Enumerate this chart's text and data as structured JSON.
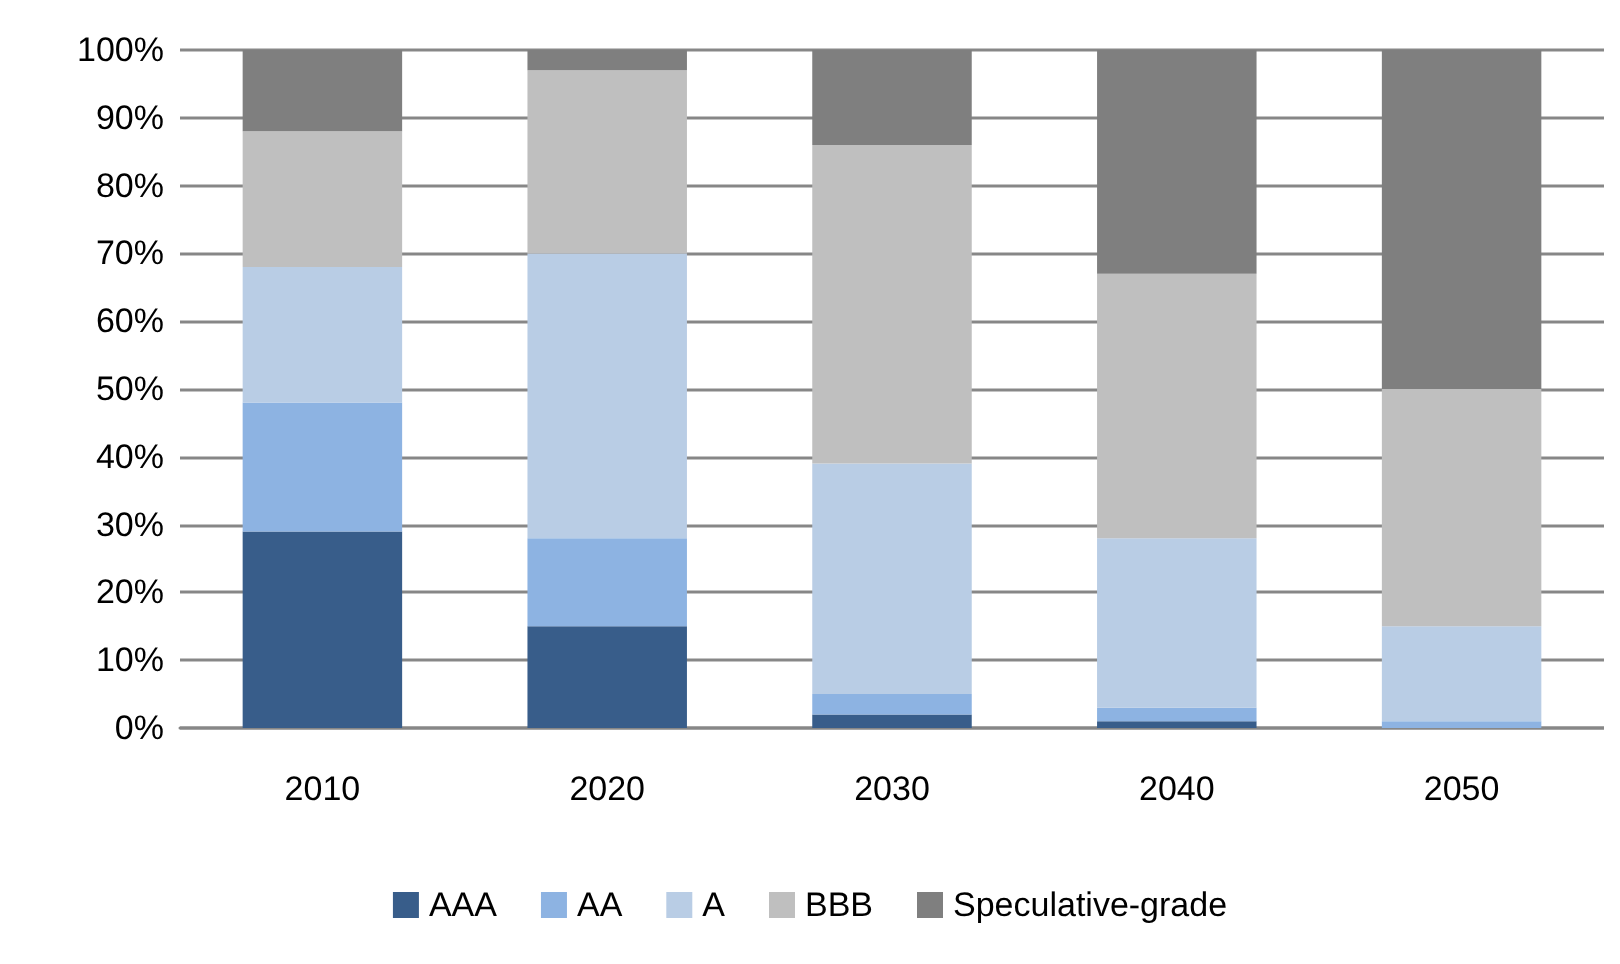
{
  "chart_data": {
    "type": "bar",
    "stacked": true,
    "categories": [
      "2010",
      "2020",
      "2030",
      "2040",
      "2050"
    ],
    "series": [
      {
        "name": "AAA",
        "color": "#385d8a",
        "values": [
          29,
          15,
          2,
          1,
          0
        ]
      },
      {
        "name": "AA",
        "color": "#8db3e2",
        "values": [
          19,
          13,
          3,
          2,
          1
        ]
      },
      {
        "name": "A",
        "color": "#b9cde5",
        "values": [
          20,
          42,
          34,
          25,
          14
        ]
      },
      {
        "name": "BBB",
        "color": "#bfbfbf",
        "values": [
          20,
          27,
          47,
          39,
          35
        ]
      },
      {
        "name": "Speculative-grade",
        "color": "#7f7f7f",
        "values": [
          12,
          3,
          14,
          33,
          50
        ]
      }
    ],
    "ylim": [
      0,
      100
    ],
    "yticks": [
      {
        "value": 0,
        "label": "0%"
      },
      {
        "value": 10,
        "label": "10%"
      },
      {
        "value": 20,
        "label": "20%"
      },
      {
        "value": 30,
        "label": "30%"
      },
      {
        "value": 40,
        "label": "40%"
      },
      {
        "value": 50,
        "label": "50%"
      },
      {
        "value": 60,
        "label": "60%"
      },
      {
        "value": 70,
        "label": "70%"
      },
      {
        "value": 80,
        "label": "80%"
      },
      {
        "value": 90,
        "label": "90%"
      },
      {
        "value": 100,
        "label": "100%"
      }
    ],
    "grid": "y",
    "legend": "bottom"
  }
}
